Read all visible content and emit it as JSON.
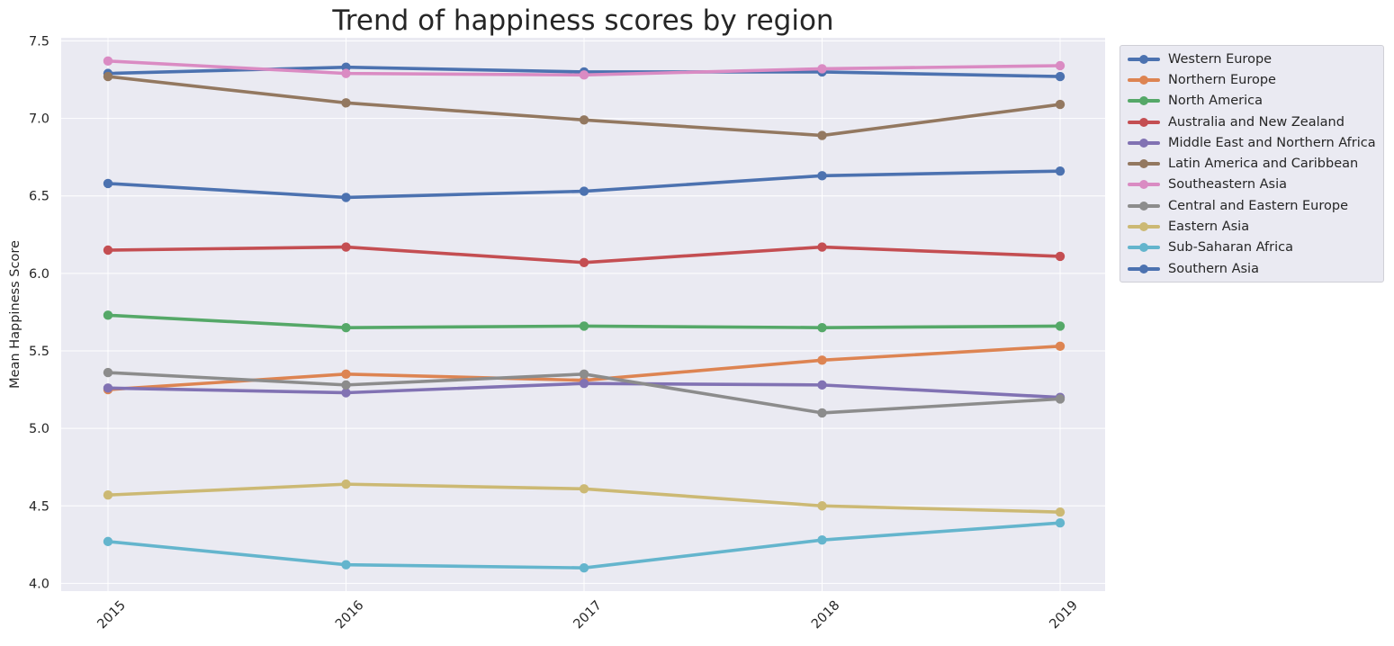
{
  "chart_data": {
    "type": "line",
    "title": "Trend of happiness scores by region",
    "xlabel": "",
    "ylabel": "Mean Happiness Score",
    "x": [
      "2015",
      "2016",
      "2017",
      "2018",
      "2019"
    ],
    "ylim": [
      3.95,
      7.52
    ],
    "yticks": [
      "4.0",
      "4.5",
      "5.0",
      "5.5",
      "6.0",
      "6.5",
      "7.0",
      "7.5"
    ],
    "grid": true,
    "legend_position": "outside-top-right",
    "series": [
      {
        "name": "Western Europe",
        "color": "#4c72b0",
        "values": [
          7.29,
          7.33,
          7.3,
          7.3,
          7.27
        ]
      },
      {
        "name": "Northern Europe",
        "color": "#dd8452",
        "values": [
          5.25,
          5.35,
          5.31,
          5.44,
          5.53
        ]
      },
      {
        "name": "North America",
        "color": "#55a868",
        "values": [
          5.73,
          5.65,
          5.66,
          5.65,
          5.66
        ]
      },
      {
        "name": "Australia and New Zealand",
        "color": "#c44e52",
        "values": [
          6.15,
          6.17,
          6.07,
          6.17,
          6.11
        ]
      },
      {
        "name": "Middle East and Northern Africa",
        "color": "#8172b3",
        "values": [
          5.26,
          5.23,
          5.29,
          5.28,
          5.2
        ]
      },
      {
        "name": "Latin America and Caribbean",
        "color": "#937860",
        "values": [
          7.27,
          7.1,
          6.99,
          6.89,
          7.09
        ]
      },
      {
        "name": "Southeastern Asia",
        "color": "#da8bc3",
        "values": [
          7.37,
          7.29,
          7.28,
          7.32,
          7.34
        ]
      },
      {
        "name": "Central and Eastern Europe",
        "color": "#8c8c8c",
        "values": [
          5.36,
          5.28,
          5.35,
          5.1,
          5.19
        ]
      },
      {
        "name": "Eastern Asia",
        "color": "#ccb974",
        "values": [
          4.57,
          4.64,
          4.61,
          4.5,
          4.46
        ]
      },
      {
        "name": "Sub-Saharan Africa",
        "color": "#64b5cd",
        "values": [
          4.27,
          4.12,
          4.1,
          4.28,
          4.39
        ]
      },
      {
        "name": "Southern Asia",
        "color": "#4c72b0",
        "values": [
          6.58,
          6.49,
          6.53,
          6.63,
          6.66
        ]
      }
    ]
  }
}
